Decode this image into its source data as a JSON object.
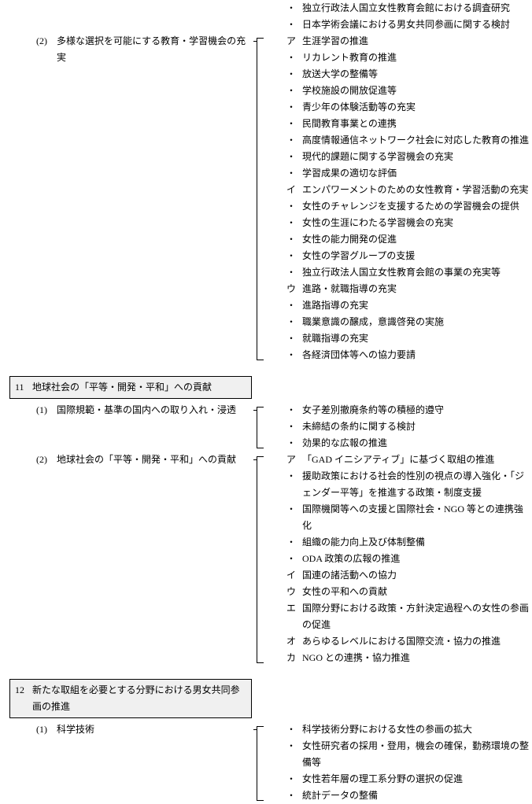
{
  "preItems": [
    {
      "mark": "・",
      "text": "独立行政法人国立女性教育会館における調査研究"
    },
    {
      "mark": "・",
      "text": "日本学術会議における男女共同参画に関する検討"
    }
  ],
  "sub2": {
    "num": "(2)",
    "title": "多様な選択を可能にする教育・学習機会の充実",
    "items": [
      {
        "mark": "ア",
        "text": "生涯学習の推進"
      },
      {
        "mark": "・",
        "text": "リカレント教育の推進"
      },
      {
        "mark": "・",
        "text": "放送大学の整備等"
      },
      {
        "mark": "・",
        "text": "学校施設の開放促進等"
      },
      {
        "mark": "・",
        "text": "青少年の体験活動等の充実"
      },
      {
        "mark": "・",
        "text": "民間教育事業との連携"
      },
      {
        "mark": "・",
        "text": "高度情報通信ネットワーク社会に対応した教育の推進"
      },
      {
        "mark": "・",
        "text": "現代的課題に関する学習機会の充実"
      },
      {
        "mark": "・",
        "text": "学習成果の適切な評価"
      },
      {
        "mark": "イ",
        "text": "エンパワーメントのための女性教育・学習活動の充実"
      },
      {
        "mark": "・",
        "text": "女性のチャレンジを支援するための学習機会の提供"
      },
      {
        "mark": "・",
        "text": "女性の生涯にわたる学習機会の充実"
      },
      {
        "mark": "・",
        "text": "女性の能力開発の促進"
      },
      {
        "mark": "・",
        "text": "女性の学習グループの支援"
      },
      {
        "mark": "・",
        "text": "独立行政法人国立女性教育会館の事業の充実等"
      },
      {
        "mark": "ウ",
        "text": "進路・就職指導の充実"
      },
      {
        "mark": "・",
        "text": "進路指導の充実"
      },
      {
        "mark": "・",
        "text": "職業意識の醸成，意識啓発の実施"
      },
      {
        "mark": "・",
        "text": "就職指導の充実"
      },
      {
        "mark": "・",
        "text": "各経済団体等への協力要請"
      }
    ]
  },
  "sec11": {
    "num": "11",
    "title": "地球社会の「平等・開発・平和」への貢献",
    "sub1": {
      "num": "(1)",
      "title": "国際規範・基準の国内への取り入れ・浸透",
      "items": [
        {
          "mark": "・",
          "text": "女子差別撤廃条約等の積極的遵守"
        },
        {
          "mark": "・",
          "text": "未締結の条約に関する検討"
        },
        {
          "mark": "・",
          "text": "効果的な広報の推進"
        }
      ]
    },
    "sub2": {
      "num": "(2)",
      "title": "地球社会の「平等・開発・平和」への貢献",
      "items": [
        {
          "mark": "ア",
          "text": "「GAD イニシアティブ」に基づく取組の推進"
        },
        {
          "mark": "・",
          "text": "援助政策における社会的性別の視点の導入強化・「ジェンダー平等」を推進する政策・制度支援"
        },
        {
          "mark": "・",
          "text": "国際機関等への支援と国際社会・NGO 等との連携強化"
        },
        {
          "mark": "・",
          "text": "組織の能力向上及び体制整備"
        },
        {
          "mark": "・",
          "text": "ODA 政策の広報の推進"
        },
        {
          "mark": "イ",
          "text": "国連の諸活動への協力"
        },
        {
          "mark": "ウ",
          "text": "女性の平和への貢献"
        },
        {
          "mark": "エ",
          "text": "国際分野における政策・方針決定過程への女性の参画の促進"
        },
        {
          "mark": "オ",
          "text": "あらゆるレベルにおける国際交流・協力の推進"
        },
        {
          "mark": "カ",
          "text": "NGO との連携・協力推進"
        }
      ]
    }
  },
  "sec12": {
    "num": "12",
    "title": "新たな取組を必要とする分野における男女共同参画の推進",
    "sub1": {
      "num": "(1)",
      "title": "科学技術",
      "items": [
        {
          "mark": "・",
          "text": "科学技術分野における女性の参画の拡大"
        },
        {
          "mark": "・",
          "text": "女性研究者の採用・登用，機会の確保，勤務環境の整備等"
        },
        {
          "mark": "・",
          "text": "女性若年層の理工系分野の選択の促進"
        },
        {
          "mark": "・",
          "text": "統計データの整備"
        }
      ]
    }
  }
}
